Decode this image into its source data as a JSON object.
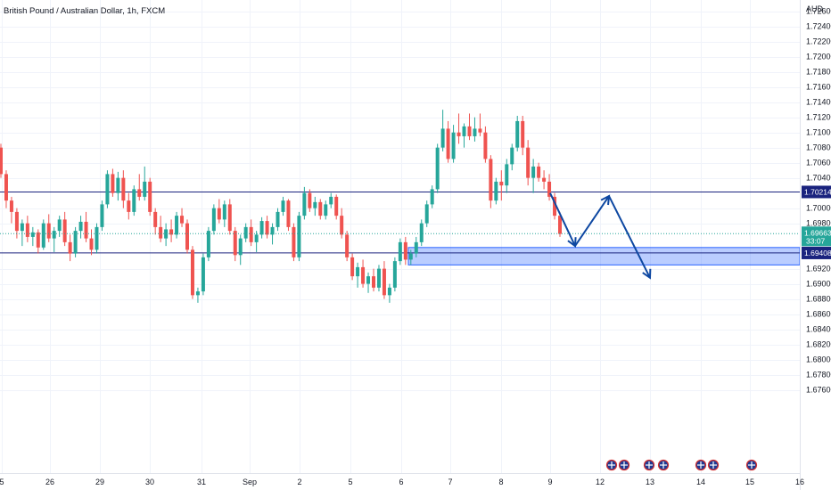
{
  "chart_data": {
    "type": "candlestick",
    "title": "British Pound / Australian Dollar, 1h, FXCM",
    "currency": "AUD",
    "ylim": [
      1.665,
      1.7275
    ],
    "y_ticks": [
      "1.72600",
      "1.72400",
      "1.72200",
      "1.72000",
      "1.71800",
      "1.71600",
      "1.71400",
      "1.71200",
      "1.71000",
      "1.70800",
      "1.70600",
      "1.70400",
      "1.70000",
      "1.69800",
      "1.69200",
      "1.69000",
      "1.68800",
      "1.68600",
      "1.68400",
      "1.68200",
      "1.68000",
      "1.67800",
      "1.67600"
    ],
    "x_ticks": [
      "5",
      "26",
      "29",
      "30",
      "31",
      "Sep",
      "2",
      "5",
      "6",
      "7",
      "8",
      "9",
      "12",
      "13",
      "14",
      "15",
      "16"
    ],
    "price_levels": [
      {
        "label": "1.70214",
        "value": 1.70214,
        "color": "#1a237e"
      },
      {
        "label": "1.69408",
        "value": 1.69408,
        "color": "#1a237e"
      }
    ],
    "current_price": {
      "label": "1.69663",
      "countdown": "33:07",
      "value": 1.69663,
      "color": "#26a69a"
    },
    "zone": {
      "top": 1.6948,
      "bottom": 1.6925,
      "color": "#2962ff"
    },
    "projection_arrow": {
      "color": "#0d47a1",
      "points": [
        {
          "x": "9",
          "y": 1.702
        },
        {
          "x": "9",
          "y": 1.695
        },
        {
          "x": "12",
          "y": 1.7016
        },
        {
          "x": "13",
          "y": 1.6908
        }
      ]
    },
    "ohlc": [
      [
        1.708,
        1.7085,
        1.704,
        1.7045
      ],
      [
        1.7045,
        1.705,
        1.7,
        1.701
      ],
      [
        1.701,
        1.7015,
        1.698,
        1.6995
      ],
      [
        1.6995,
        1.7,
        1.696,
        1.697
      ],
      [
        1.697,
        1.6985,
        1.695,
        1.698
      ],
      [
        1.698,
        1.699,
        1.6955,
        1.6962
      ],
      [
        1.6962,
        1.6975,
        1.695,
        1.6968
      ],
      [
        1.6968,
        1.6972,
        1.694,
        1.6948
      ],
      [
        1.6948,
        1.6985,
        1.6945,
        1.698
      ],
      [
        1.698,
        1.6992,
        1.6955,
        1.696
      ],
      [
        1.696,
        1.6975,
        1.6942,
        1.697
      ],
      [
        1.697,
        1.699,
        1.6962,
        1.6985
      ],
      [
        1.6985,
        1.6995,
        1.695,
        1.6955
      ],
      [
        1.6955,
        1.6965,
        1.693,
        1.694
      ],
      [
        1.694,
        1.6975,
        1.6935,
        1.697
      ],
      [
        1.697,
        1.699,
        1.696,
        1.6982
      ],
      [
        1.6982,
        1.6995,
        1.6955,
        1.696
      ],
      [
        1.696,
        1.6972,
        1.6938,
        1.6945
      ],
      [
        1.6945,
        1.698,
        1.694,
        1.6975
      ],
      [
        1.6975,
        1.701,
        1.697,
        1.7005
      ],
      [
        1.7005,
        1.705,
        1.7,
        1.7045
      ],
      [
        1.7045,
        1.7052,
        1.7015,
        1.702
      ],
      [
        1.702,
        1.7048,
        1.701,
        1.704
      ],
      [
        1.704,
        1.705,
        1.7,
        1.701
      ],
      [
        1.701,
        1.702,
        1.6985,
        1.6995
      ],
      [
        1.6995,
        1.703,
        1.699,
        1.7025
      ],
      [
        1.7025,
        1.7045,
        1.701,
        1.7015
      ],
      [
        1.7015,
        1.7055,
        1.701,
        1.7035
      ],
      [
        1.7035,
        1.704,
        1.699,
        1.6995
      ],
      [
        1.6995,
        1.7,
        1.6965,
        1.6975
      ],
      [
        1.6975,
        1.699,
        1.6955,
        1.696
      ],
      [
        1.696,
        1.698,
        1.695,
        1.6972
      ],
      [
        1.6972,
        1.6985,
        1.6955,
        1.6965
      ],
      [
        1.6965,
        1.6995,
        1.696,
        1.699
      ],
      [
        1.699,
        1.7,
        1.6975,
        1.698
      ],
      [
        1.698,
        1.6985,
        1.694,
        1.6945
      ],
      [
        1.6945,
        1.695,
        1.688,
        1.6885
      ],
      [
        1.6885,
        1.6895,
        1.6875,
        1.689
      ],
      [
        1.689,
        1.694,
        1.6885,
        1.6935
      ],
      [
        1.6935,
        1.6975,
        1.693,
        1.697
      ],
      [
        1.697,
        1.7005,
        1.6965,
        1.7
      ],
      [
        1.7,
        1.7012,
        1.698,
        1.6985
      ],
      [
        1.6985,
        1.701,
        1.6975,
        1.7005
      ],
      [
        1.7005,
        1.7012,
        1.6965,
        1.697
      ],
      [
        1.697,
        1.6975,
        1.693,
        1.6938
      ],
      [
        1.6938,
        1.6965,
        1.6925,
        1.696
      ],
      [
        1.696,
        1.698,
        1.6955,
        1.6975
      ],
      [
        1.6975,
        1.6985,
        1.695,
        1.6955
      ],
      [
        1.6955,
        1.697,
        1.6942,
        1.6965
      ],
      [
        1.6965,
        1.6988,
        1.696,
        1.6983
      ],
      [
        1.6983,
        1.699,
        1.696,
        1.6965
      ],
      [
        1.6965,
        1.698,
        1.6952,
        1.6975
      ],
      [
        1.6975,
        1.7,
        1.697,
        1.6995
      ],
      [
        1.6995,
        1.7015,
        1.699,
        1.701
      ],
      [
        1.701,
        1.7012,
        1.697,
        1.6975
      ],
      [
        1.6975,
        1.698,
        1.693,
        1.6935
      ],
      [
        1.6935,
        1.6995,
        1.693,
        1.699
      ],
      [
        1.699,
        1.7028,
        1.6985,
        1.702
      ],
      [
        1.702,
        1.7025,
        1.6995,
        1.7
      ],
      [
        1.7,
        1.7015,
        1.699,
        1.7008
      ],
      [
        1.7008,
        1.7012,
        1.6985,
        1.699
      ],
      [
        1.699,
        1.701,
        1.6985,
        1.7005
      ],
      [
        1.7005,
        1.702,
        1.7,
        1.7015
      ],
      [
        1.7015,
        1.7018,
        1.6985,
        1.699
      ],
      [
        1.699,
        1.7,
        1.696,
        1.6965
      ],
      [
        1.6965,
        1.697,
        1.693,
        1.6935
      ],
      [
        1.6935,
        1.694,
        1.6905,
        1.691
      ],
      [
        1.691,
        1.6928,
        1.6895,
        1.6922
      ],
      [
        1.6922,
        1.6932,
        1.6895,
        1.69
      ],
      [
        1.69,
        1.6915,
        1.6888,
        1.691
      ],
      [
        1.691,
        1.692,
        1.689,
        1.6895
      ],
      [
        1.6895,
        1.6925,
        1.689,
        1.692
      ],
      [
        1.692,
        1.693,
        1.688,
        1.6885
      ],
      [
        1.6885,
        1.69,
        1.6875,
        1.6895
      ],
      [
        1.6895,
        1.6935,
        1.689,
        1.693
      ],
      [
        1.693,
        1.696,
        1.6925,
        1.6955
      ],
      [
        1.6955,
        1.6962,
        1.6925,
        1.6932
      ],
      [
        1.6932,
        1.6945,
        1.6925,
        1.694
      ],
      [
        1.694,
        1.6962,
        1.6935,
        1.6955
      ],
      [
        1.6955,
        1.6985,
        1.695,
        1.698
      ],
      [
        1.698,
        1.701,
        1.6975,
        1.7005
      ],
      [
        1.7005,
        1.703,
        1.7,
        1.7025
      ],
      [
        1.7025,
        1.7085,
        1.702,
        1.708
      ],
      [
        1.708,
        1.713,
        1.7075,
        1.7105
      ],
      [
        1.7105,
        1.7115,
        1.706,
        1.7065
      ],
      [
        1.7065,
        1.711,
        1.706,
        1.71
      ],
      [
        1.71,
        1.7125,
        1.7085,
        1.7095
      ],
      [
        1.7095,
        1.7112,
        1.708,
        1.7108
      ],
      [
        1.7108,
        1.7125,
        1.709,
        1.7095
      ],
      [
        1.7095,
        1.712,
        1.7088,
        1.7105
      ],
      [
        1.7105,
        1.7125,
        1.7095,
        1.71
      ],
      [
        1.71,
        1.7108,
        1.706,
        1.7065
      ],
      [
        1.7065,
        1.707,
        1.7,
        1.701
      ],
      [
        1.701,
        1.704,
        1.7005,
        1.7035
      ],
      [
        1.7035,
        1.705,
        1.701,
        1.703
      ],
      [
        1.703,
        1.7065,
        1.702,
        1.7058
      ],
      [
        1.7058,
        1.7085,
        1.705,
        1.708
      ],
      [
        1.708,
        1.7122,
        1.7075,
        1.7115
      ],
      [
        1.7115,
        1.7122,
        1.707,
        1.708
      ],
      [
        1.708,
        1.709,
        1.703,
        1.704
      ],
      [
        1.704,
        1.7065,
        1.702,
        1.7055
      ],
      [
        1.7055,
        1.706,
        1.7035,
        1.704
      ],
      [
        1.704,
        1.705,
        1.7025,
        1.7035
      ],
      [
        1.7035,
        1.7045,
        1.701,
        1.7015
      ],
      [
        1.7015,
        1.702,
        1.6985,
        1.699
      ],
      [
        1.699,
        1.6995,
        1.6962,
        1.6966
      ]
    ]
  }
}
